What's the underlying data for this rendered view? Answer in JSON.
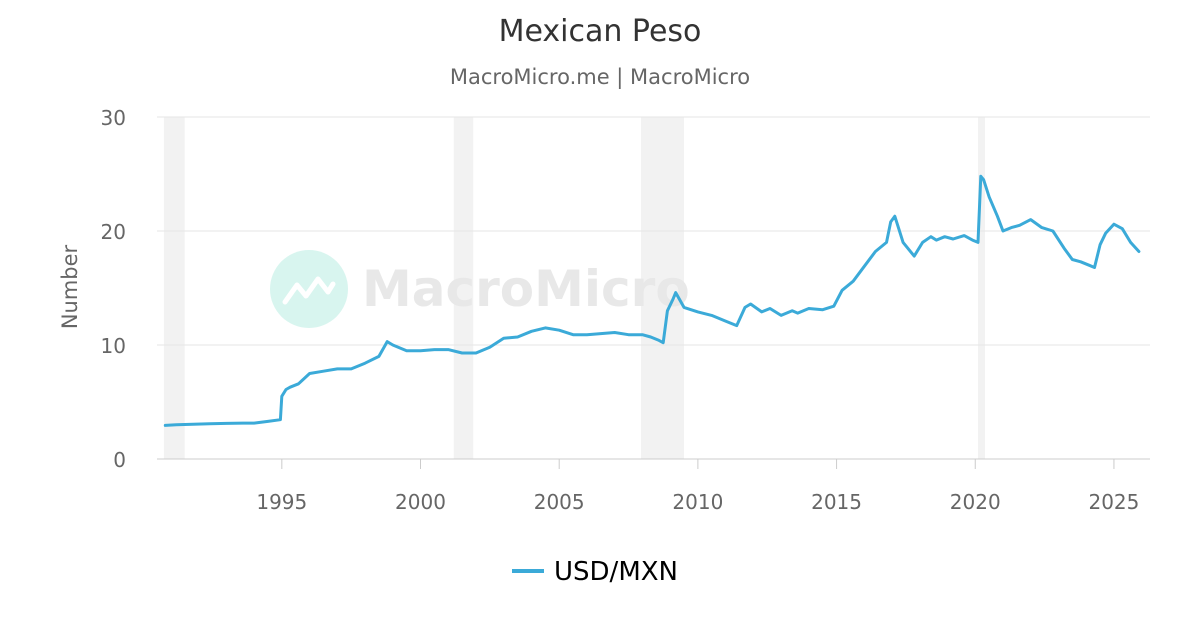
{
  "chart_data": {
    "type": "line",
    "title": "Mexican Peso",
    "subtitle": "MacroMicro.me | MacroMicro",
    "watermark": "MacroMicro",
    "ylabel": "Number",
    "xlabel": "",
    "xlim": [
      1990.5,
      2026.3
    ],
    "ylim": [
      0,
      30
    ],
    "yticks": [
      0,
      10,
      20,
      30
    ],
    "xticks": [
      1995,
      2000,
      2005,
      2010,
      2015,
      2020,
      2025
    ],
    "grid": true,
    "legend_position": "bottom-center",
    "shaded_periods": [
      [
        1990.75,
        1991.5
      ],
      [
        2001.2,
        2001.9
      ],
      [
        2007.95,
        2009.5
      ],
      [
        2020.1,
        2020.35
      ]
    ],
    "series": [
      {
        "name": "USD/MXN",
        "color": "#3BAAD8",
        "x": [
          1990.8,
          1991.2,
          1991.8,
          1992.4,
          1993.0,
          1993.6,
          1994.0,
          1994.5,
          1994.95,
          1995.0,
          1995.15,
          1995.3,
          1995.6,
          1996.0,
          1996.5,
          1997.0,
          1997.5,
          1998.0,
          1998.5,
          1998.8,
          1999.0,
          1999.5,
          2000.0,
          2000.5,
          2001.0,
          2001.5,
          2002.0,
          2002.5,
          2003.0,
          2003.5,
          2004.0,
          2004.5,
          2005.0,
          2005.5,
          2006.0,
          2006.5,
          2007.0,
          2007.5,
          2008.0,
          2008.3,
          2008.6,
          2008.75,
          2008.9,
          2009.1,
          2009.2,
          2009.5,
          2010.0,
          2010.5,
          2011.0,
          2011.4,
          2011.7,
          2011.9,
          2012.3,
          2012.6,
          2013.0,
          2013.4,
          2013.6,
          2014.0,
          2014.5,
          2014.9,
          2015.2,
          2015.6,
          2016.0,
          2016.4,
          2016.8,
          2016.95,
          2017.1,
          2017.4,
          2017.8,
          2018.1,
          2018.4,
          2018.6,
          2018.9,
          2019.2,
          2019.6,
          2019.9,
          2020.1,
          2020.2,
          2020.3,
          2020.5,
          2020.8,
          2021.0,
          2021.3,
          2021.6,
          2022.0,
          2022.4,
          2022.8,
          2023.2,
          2023.5,
          2023.8,
          2024.1,
          2024.3,
          2024.5,
          2024.7,
          2025.0,
          2025.3,
          2025.6,
          2025.9
        ],
        "values": [
          2.95,
          3.0,
          3.05,
          3.1,
          3.12,
          3.15,
          3.15,
          3.3,
          3.45,
          5.5,
          6.1,
          6.3,
          6.6,
          7.5,
          7.7,
          7.9,
          7.9,
          8.4,
          9.0,
          10.3,
          10.0,
          9.5,
          9.5,
          9.6,
          9.6,
          9.3,
          9.3,
          9.8,
          10.6,
          10.7,
          11.2,
          11.5,
          11.3,
          10.9,
          10.9,
          11.0,
          11.1,
          10.9,
          10.9,
          10.7,
          10.4,
          10.2,
          13.0,
          14.0,
          14.6,
          13.3,
          12.9,
          12.6,
          12.1,
          11.7,
          13.3,
          13.6,
          12.9,
          13.2,
          12.6,
          13.0,
          12.8,
          13.2,
          13.1,
          13.4,
          14.8,
          15.6,
          16.9,
          18.2,
          19.0,
          20.8,
          21.3,
          19.0,
          17.8,
          19.0,
          19.5,
          19.2,
          19.5,
          19.3,
          19.6,
          19.2,
          19.0,
          24.8,
          24.5,
          23.0,
          21.3,
          20.0,
          20.3,
          20.5,
          21.0,
          20.3,
          20.0,
          18.5,
          17.5,
          17.3,
          17.0,
          16.8,
          18.8,
          19.8,
          20.6,
          20.2,
          19.0,
          18.2
        ]
      }
    ]
  }
}
